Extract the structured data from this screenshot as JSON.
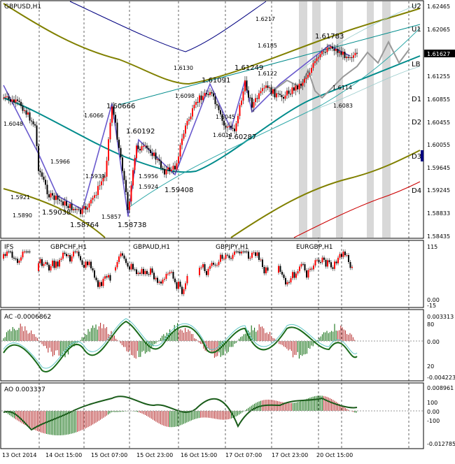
{
  "main": {
    "title": "GBPUSD,H1",
    "price_axis": [
      "1.62465",
      "1.62065",
      "1.61627",
      "1.61255",
      "1.60855",
      "1.60455",
      "1.60055",
      "1.59645",
      "1.59245",
      "1.58833",
      "1.58435"
    ],
    "current_price": "1.61627",
    "levels": [
      "U2",
      "U1",
      "LB",
      "D1",
      "D2",
      "D3",
      "D4"
    ],
    "price_labels": [
      "1.6217",
      "1.6185",
      "1.61783",
      "1.6130",
      "1.61249",
      "1.61091",
      "1.6122",
      "1.6098",
      "1.60666",
      "1.6066",
      "1.6048",
      "1.60192",
      "1.6114",
      "1.6083",
      "1.6045",
      "1.6014",
      "1.60287",
      "1.5966",
      "1.5939",
      "1.5956",
      "1.5924",
      "1.59408",
      "1.5921",
      "1.59038",
      "1.5890",
      "1.58764",
      "1.5857",
      "1.58738"
    ]
  },
  "ifs": {
    "label": "IFS",
    "pairs": [
      "GBPCHF,H1",
      "GBPAUD,H1",
      "GBPJPY,H1",
      "EURGBP,H1"
    ],
    "scale": [
      "115",
      "0.00",
      "-15"
    ]
  },
  "ac": {
    "label": "AC -0.0006862",
    "scale": [
      "0.003313",
      "80",
      "0.00",
      "20",
      "-0.004223"
    ]
  },
  "ao": {
    "label": "AO 0.003337",
    "scale": [
      "0.008961",
      "100",
      "0.00",
      "-100",
      "-0.012785"
    ]
  },
  "time_axis": [
    "13 Oct 2014",
    "14 Oct 15:00",
    "15 Oct 07:00",
    "15 Oct 23:00",
    "16 Oct 15:00",
    "17 Oct 07:00",
    "17 Oct 23:00",
    "20 Oct 15:00"
  ],
  "colors": {
    "up": "#ff0000",
    "down": "#000000",
    "teal": "#008b8b",
    "olive": "#808000",
    "navy": "#000080",
    "purple": "#6a5acd",
    "green": "#006400"
  }
}
